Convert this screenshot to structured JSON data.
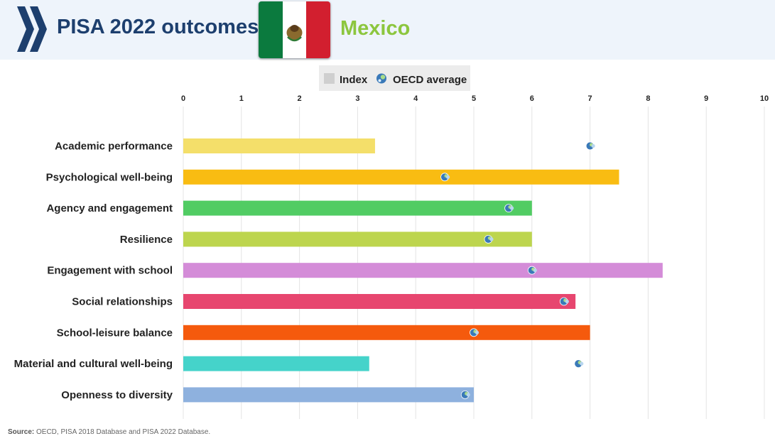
{
  "header": {
    "title": "PISA 2022 outcomes:",
    "country": "Mexico",
    "colors": {
      "title": "#1d3f6e",
      "country": "#8cc63e",
      "background": "#eef4fb",
      "logo": "#1d3f6e"
    }
  },
  "legend": {
    "index_label": "Index",
    "oecd_label": "OECD average"
  },
  "chart_data": {
    "type": "bar",
    "orientation": "horizontal",
    "title": "",
    "xlabel": "",
    "ylabel": "",
    "xlim": [
      0,
      10
    ],
    "xticks": [
      0,
      1,
      2,
      3,
      4,
      5,
      6,
      7,
      8,
      9,
      10
    ],
    "grid": true,
    "legend_position": "top-center",
    "categories": [
      "Academic performance",
      "Psychological well-being",
      "Agency and engagement",
      "Resilience",
      "Engagement with school",
      "Social relationships",
      "School-leisure balance",
      "Material and cultural well-being",
      "Openness to diversity"
    ],
    "series": [
      {
        "name": "Index",
        "values": [
          3.3,
          7.5,
          6.0,
          6.0,
          8.25,
          6.75,
          7.0,
          3.2,
          5.0
        ]
      },
      {
        "name": "OECD average",
        "values": [
          7.0,
          4.5,
          5.6,
          5.25,
          6.0,
          6.55,
          5.0,
          6.8,
          4.85
        ]
      }
    ],
    "bar_colors": [
      "#f4df6a",
      "#f9bc12",
      "#51cc63",
      "#bdd54e",
      "#d48cd8",
      "#e7466f",
      "#f55a0d",
      "#45d3ca",
      "#8eb1de"
    ]
  },
  "source": {
    "label": "Source:",
    "text": "OECD, PISA 2018 Database and PISA 2022 Database."
  }
}
